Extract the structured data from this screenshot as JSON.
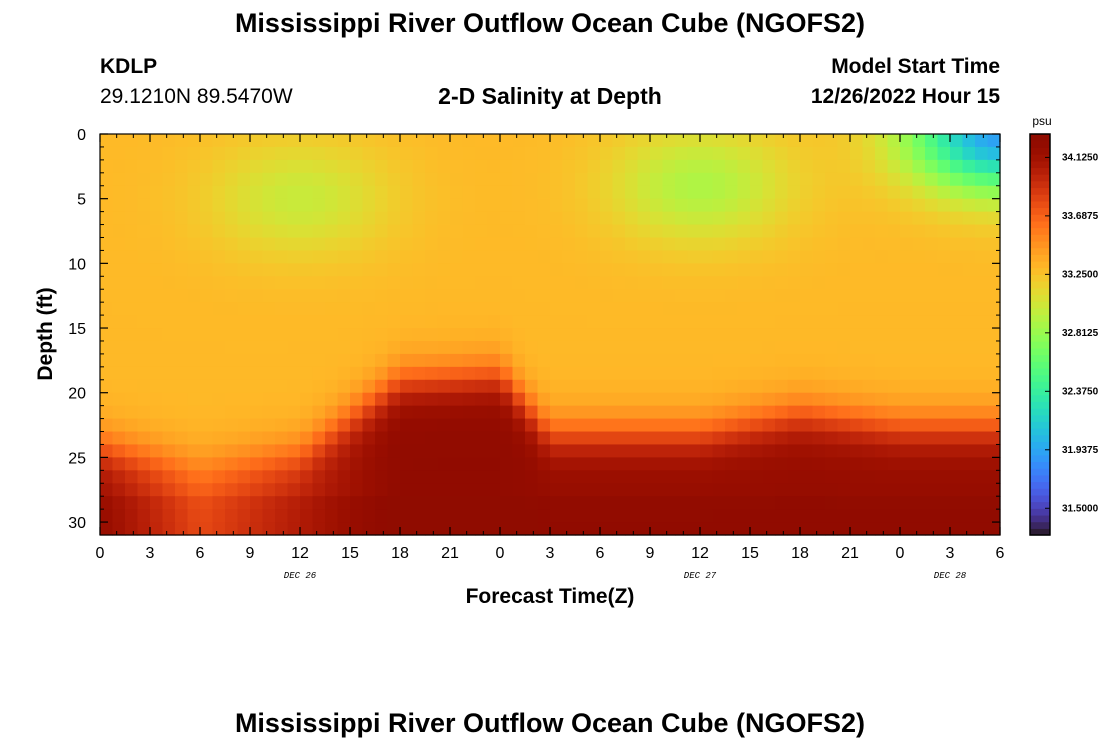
{
  "header": {
    "title": "Mississippi River Outflow Ocean Cube (NGOFS2)",
    "station_id": "KDLP",
    "station_coords": "29.1210N  89.5470W",
    "subtitle": "2-D Salinity at Depth",
    "model_start_label": "Model Start Time",
    "model_start_value": "12/26/2022 Hour 15"
  },
  "footer": {
    "title": "Mississippi River Outflow Ocean Cube (NGOFS2)"
  },
  "chart_data": {
    "type": "heatmap",
    "title": "2-D Salinity at Depth",
    "xlabel": "Forecast Time(Z)",
    "ylabel": "Depth (ft)",
    "x_tick_labels": [
      "0",
      "3",
      "6",
      "9",
      "12",
      "15",
      "18",
      "21",
      "0",
      "3",
      "6",
      "9",
      "12",
      "15",
      "18",
      "21",
      "0",
      "3",
      "6"
    ],
    "x_hours_range": [
      0,
      54
    ],
    "date_labels": [
      {
        "label": "DEC 26",
        "hour": 12
      },
      {
        "label": "DEC 27",
        "hour": 36
      },
      {
        "label": "DEC 28",
        "hour": 51
      }
    ],
    "y_ticks": [
      0,
      5,
      10,
      15,
      20,
      25,
      30
    ],
    "ylim": [
      0,
      31
    ],
    "y_reversed": true,
    "colorbar": {
      "unit": "psu",
      "range": [
        31.3,
        34.3
      ],
      "tick_values": [
        34.125,
        33.6875,
        33.25,
        32.8125,
        32.375,
        31.9375,
        31.5
      ],
      "tick_labels": [
        "34.1250",
        "33.6875",
        "33.2500",
        "32.8125",
        "32.3750",
        "31.9375",
        "31.5000"
      ],
      "colormap": "turbo"
    },
    "salinity_profile": {
      "description": "salinity (psu) by forecast hour and depth (ft)",
      "hours": [
        0,
        6,
        12,
        18,
        24,
        27,
        30,
        36,
        42,
        48,
        51,
        54
      ],
      "halocline_depth_ft": [
        22.0,
        23.5,
        22.5,
        17.0,
        16.5,
        21.0,
        21.0,
        21.0,
        19.5,
        20.5,
        20.5,
        20.5
      ],
      "bottom_salinity": [
        34.15,
        33.75,
        34.0,
        34.25,
        34.25,
        34.2,
        34.2,
        34.2,
        34.2,
        34.2,
        34.2,
        34.2
      ],
      "surface_fresh_zones": [
        {
          "hour_center": 12,
          "depth_center": 5,
          "min_salinity": 33.0
        },
        {
          "hour_center": 36,
          "depth_center": 4,
          "min_salinity": 32.9
        },
        {
          "hour_center": 54,
          "depth_center": 0,
          "min_salinity": 31.9
        }
      ],
      "background_salinity": 33.3
    }
  }
}
